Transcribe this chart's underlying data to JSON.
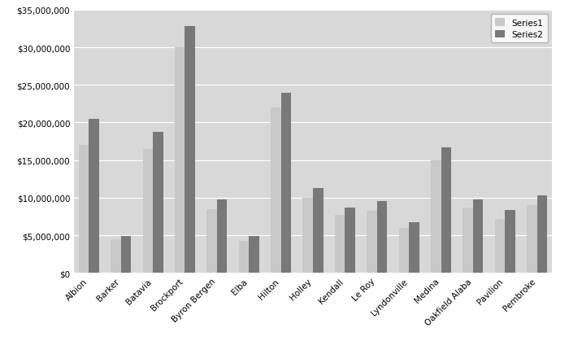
{
  "categories": [
    "Albion",
    "Barker",
    "Batavia",
    "Brockport",
    "Byron Bergen",
    "Elba",
    "Hilton",
    "Holley",
    "Kendall",
    "Le Roy",
    "Lyndonville",
    "Medina",
    "Oakfield Alaba",
    "Pavilion",
    "Pembroke"
  ],
  "series1": [
    17000000,
    4500000,
    16500000,
    30000000,
    8500000,
    4200000,
    22000000,
    10000000,
    7700000,
    8200000,
    6000000,
    15000000,
    8700000,
    7200000,
    9000000
  ],
  "series2": [
    20500000,
    4900000,
    18700000,
    32800000,
    9800000,
    4900000,
    24000000,
    11300000,
    8700000,
    9600000,
    6700000,
    16700000,
    9800000,
    8400000,
    10300000
  ],
  "series1_color": "#c8c8c8",
  "series2_color": "#787878",
  "figure_bg_color": "#ffffff",
  "plot_bg_color": "#d8d8d8",
  "ylim": [
    0,
    35000000
  ],
  "ytick_step": 5000000,
  "legend_labels": [
    "Series1",
    "Series2"
  ],
  "bar_width": 0.32
}
